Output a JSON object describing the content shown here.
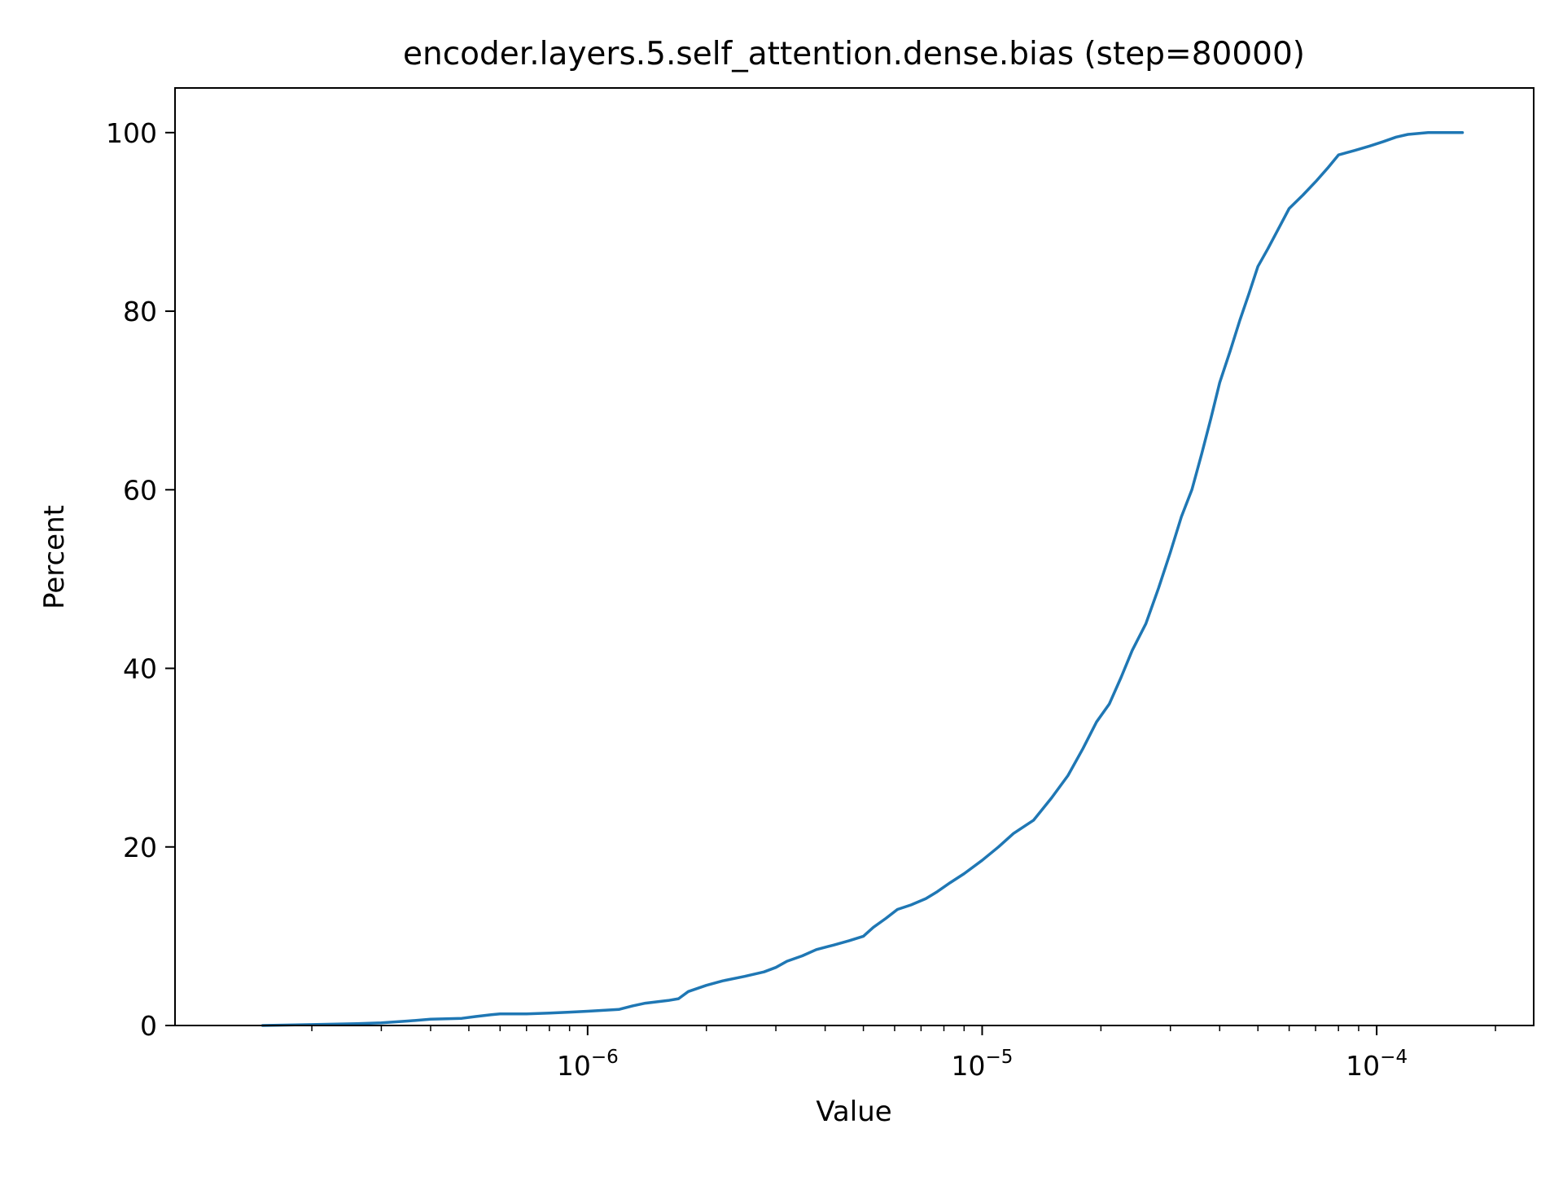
{
  "chart_data": {
    "type": "line",
    "title": "encoder.layers.5.self_attention.dense.bias (step=80000)",
    "xlabel": "Value",
    "ylabel": "Percent",
    "xscale": "log",
    "xlim": [
      9e-08,
      0.00025
    ],
    "ylim": [
      0,
      105
    ],
    "grid": false,
    "legend": "none",
    "x_ticks": [
      {
        "value": 1e-06,
        "base": "10",
        "exp": "−6"
      },
      {
        "value": 1e-05,
        "base": "10",
        "exp": "−5"
      },
      {
        "value": 0.0001,
        "base": "10",
        "exp": "−4"
      }
    ],
    "y_ticks": [
      {
        "value": 0,
        "label": "0"
      },
      {
        "value": 20,
        "label": "20"
      },
      {
        "value": 40,
        "label": "40"
      },
      {
        "value": 60,
        "label": "60"
      },
      {
        "value": 80,
        "label": "80"
      },
      {
        "value": 100,
        "label": "100"
      }
    ],
    "series": [
      {
        "color": "#1f77b4",
        "x": [
          1.5e-07,
          2e-07,
          2.6e-07,
          3e-07,
          3.5e-07,
          4e-07,
          4.8e-07,
          5.2e-07,
          5.7e-07,
          6e-07,
          7e-07,
          8e-07,
          9e-07,
          1e-06,
          1.2e-06,
          1.3e-06,
          1.4e-06,
          1.6e-06,
          1.7e-06,
          1.8e-06,
          2e-06,
          2.2e-06,
          2.5e-06,
          2.8e-06,
          3e-06,
          3.2e-06,
          3.5e-06,
          3.8e-06,
          4.2e-06,
          4.6e-06,
          5e-06,
          5.3e-06,
          5.7e-06,
          6.1e-06,
          6.6e-06,
          7.2e-06,
          7.7e-06,
          8.3e-06,
          9e-06,
          1e-05,
          1.1e-05,
          1.2e-05,
          1.35e-05,
          1.5e-05,
          1.65e-05,
          1.8e-05,
          1.95e-05,
          2.1e-05,
          2.25e-05,
          2.4e-05,
          2.6e-05,
          2.8e-05,
          3e-05,
          3.2e-05,
          3.4e-05,
          3.6e-05,
          3.8e-05,
          4e-05,
          4.25e-05,
          4.5e-05,
          4.75e-05,
          5e-05,
          5.3e-05,
          5.6e-05,
          6e-05,
          6.5e-05,
          7e-05,
          7.5e-05,
          8e-05,
          8.8e-05,
          9.6e-05,
          0.000104,
          0.000112,
          0.00012,
          0.000135,
          0.00015,
          0.000165
        ],
        "y": [
          0.0,
          0.1,
          0.2,
          0.3,
          0.5,
          0.7,
          0.8,
          1.0,
          1.2,
          1.3,
          1.3,
          1.4,
          1.5,
          1.6,
          1.8,
          2.2,
          2.5,
          2.8,
          3.0,
          3.8,
          4.5,
          5.0,
          5.5,
          6.0,
          6.5,
          7.2,
          7.8,
          8.5,
          9.0,
          9.5,
          10.0,
          11.0,
          12.0,
          13.0,
          13.5,
          14.2,
          15.0,
          16.0,
          17.0,
          18.5,
          20.0,
          21.5,
          23.0,
          25.5,
          28.0,
          31.0,
          34.0,
          36.0,
          39.0,
          42.0,
          45.0,
          49.0,
          53.0,
          57.0,
          60.0,
          64.0,
          68.0,
          72.0,
          75.5,
          79.0,
          82.0,
          85.0,
          87.0,
          89.0,
          91.5,
          93.0,
          94.5,
          96.0,
          97.5,
          98.0,
          98.5,
          99.0,
          99.5,
          99.8,
          100.0,
          100.0,
          100.0
        ]
      }
    ]
  }
}
